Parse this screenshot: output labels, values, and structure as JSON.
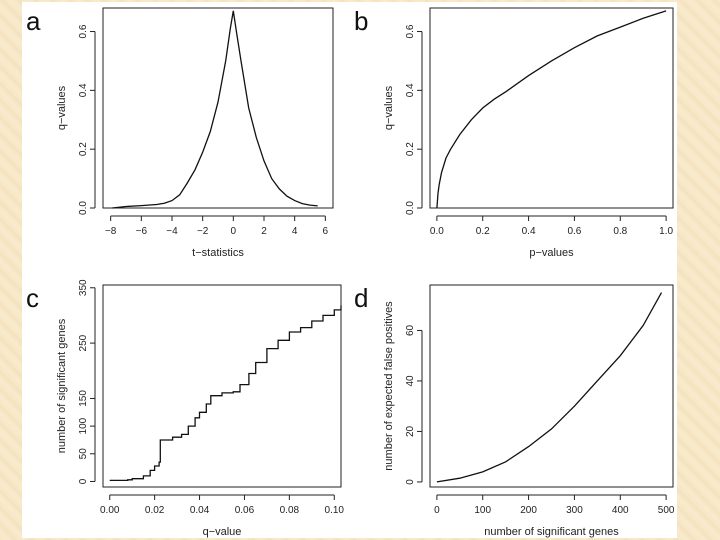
{
  "chart_data": [
    {
      "panel_letter": "a",
      "type": "line",
      "title": "",
      "xlabel": "t−statistics",
      "ylabel": "q−values",
      "xlim": [
        -8.5,
        6.5
      ],
      "ylim": [
        0.0,
        0.68
      ],
      "xticks": [
        -8,
        -6,
        -4,
        -2,
        0,
        2,
        4,
        6
      ],
      "xtick_labels": [
        "−8",
        "−6",
        "−4",
        "−2",
        "0",
        "2",
        "4",
        "6"
      ],
      "yticks": [
        0.0,
        0.2,
        0.4,
        0.6
      ],
      "ytick_labels": [
        "0.0",
        "0.2",
        "0.4",
        "0.6"
      ],
      "series": [
        {
          "name": "q-values",
          "x": [
            -7.9,
            -7,
            -6,
            -5,
            -4.5,
            -4,
            -3.5,
            -3,
            -2.5,
            -2,
            -1.5,
            -1,
            -0.5,
            -0.2,
            0,
            0.2,
            0.5,
            1,
            1.5,
            2,
            2.5,
            3,
            3.5,
            4,
            4.5,
            5,
            5.5
          ],
          "y": [
            0.0,
            0.005,
            0.008,
            0.012,
            0.016,
            0.025,
            0.045,
            0.085,
            0.13,
            0.19,
            0.26,
            0.36,
            0.5,
            0.61,
            0.67,
            0.6,
            0.5,
            0.34,
            0.24,
            0.16,
            0.1,
            0.065,
            0.04,
            0.025,
            0.015,
            0.01,
            0.007
          ]
        }
      ]
    },
    {
      "panel_letter": "b",
      "type": "line",
      "title": "",
      "xlabel": "p−values",
      "ylabel": "q−values",
      "xlim": [
        -0.03,
        1.03
      ],
      "ylim": [
        0.0,
        0.68
      ],
      "xticks": [
        0.0,
        0.2,
        0.4,
        0.6,
        0.8,
        1.0
      ],
      "xtick_labels": [
        "0.0",
        "0.2",
        "0.4",
        "0.6",
        "0.8",
        "1.0"
      ],
      "yticks": [
        0.0,
        0.2,
        0.4,
        0.6
      ],
      "ytick_labels": [
        "0.0",
        "0.2",
        "0.4",
        "0.6"
      ],
      "series": [
        {
          "name": "q-values",
          "x": [
            0,
            0.005,
            0.01,
            0.02,
            0.04,
            0.06,
            0.1,
            0.15,
            0.2,
            0.25,
            0.3,
            0.4,
            0.5,
            0.6,
            0.7,
            0.8,
            0.9,
            1.0
          ],
          "y": [
            0.0,
            0.05,
            0.08,
            0.12,
            0.17,
            0.2,
            0.25,
            0.3,
            0.34,
            0.37,
            0.395,
            0.45,
            0.5,
            0.545,
            0.585,
            0.615,
            0.645,
            0.67
          ]
        }
      ]
    },
    {
      "panel_letter": "c",
      "type": "line",
      "title": "",
      "xlabel": "q−value",
      "ylabel": "number of significant genes",
      "xlim": [
        -0.003,
        0.103
      ],
      "ylim": [
        -10,
        355
      ],
      "xticks": [
        0.0,
        0.02,
        0.04,
        0.06,
        0.08,
        0.1
      ],
      "xtick_labels": [
        "0.00",
        "0.02",
        "0.04",
        "0.06",
        "0.08",
        "0.10"
      ],
      "yticks": [
        0,
        50,
        100,
        150,
        250,
        350
      ],
      "ytick_labels": [
        "0",
        "50",
        "100",
        "150",
        "250",
        "350"
      ],
      "series": [
        {
          "name": "significant genes",
          "x": [
            0,
            0.008,
            0.01,
            0.015,
            0.018,
            0.02,
            0.022,
            0.0225,
            0.028,
            0.032,
            0.035,
            0.038,
            0.04,
            0.043,
            0.045,
            0.05,
            0.055,
            0.058,
            0.062,
            0.065,
            0.07,
            0.075,
            0.08,
            0.085,
            0.09,
            0.095,
            0.1,
            0.103
          ],
          "y": [
            2,
            3,
            5,
            10,
            20,
            28,
            35,
            75,
            80,
            85,
            100,
            115,
            125,
            140,
            155,
            160,
            162,
            175,
            195,
            215,
            240,
            255,
            270,
            278,
            290,
            300,
            310,
            318
          ]
        }
      ]
    },
    {
      "panel_letter": "d",
      "type": "line",
      "title": "",
      "xlabel": "number of significant genes",
      "ylabel": "number of expected false positives",
      "xlim": [
        -15,
        515
      ],
      "ylim": [
        -2,
        78
      ],
      "xticks": [
        0,
        100,
        200,
        300,
        400,
        500
      ],
      "xtick_labels": [
        "0",
        "100",
        "200",
        "300",
        "400",
        "500"
      ],
      "yticks": [
        0,
        20,
        40,
        60
      ],
      "ytick_labels": [
        "0",
        "20",
        "40",
        "60"
      ],
      "series": [
        {
          "name": "expected false positives",
          "x": [
            0,
            50,
            100,
            150,
            200,
            250,
            300,
            350,
            400,
            450,
            490
          ],
          "y": [
            0,
            1.5,
            4,
            8,
            14,
            21,
            30,
            40,
            50,
            62,
            75
          ]
        }
      ]
    }
  ]
}
